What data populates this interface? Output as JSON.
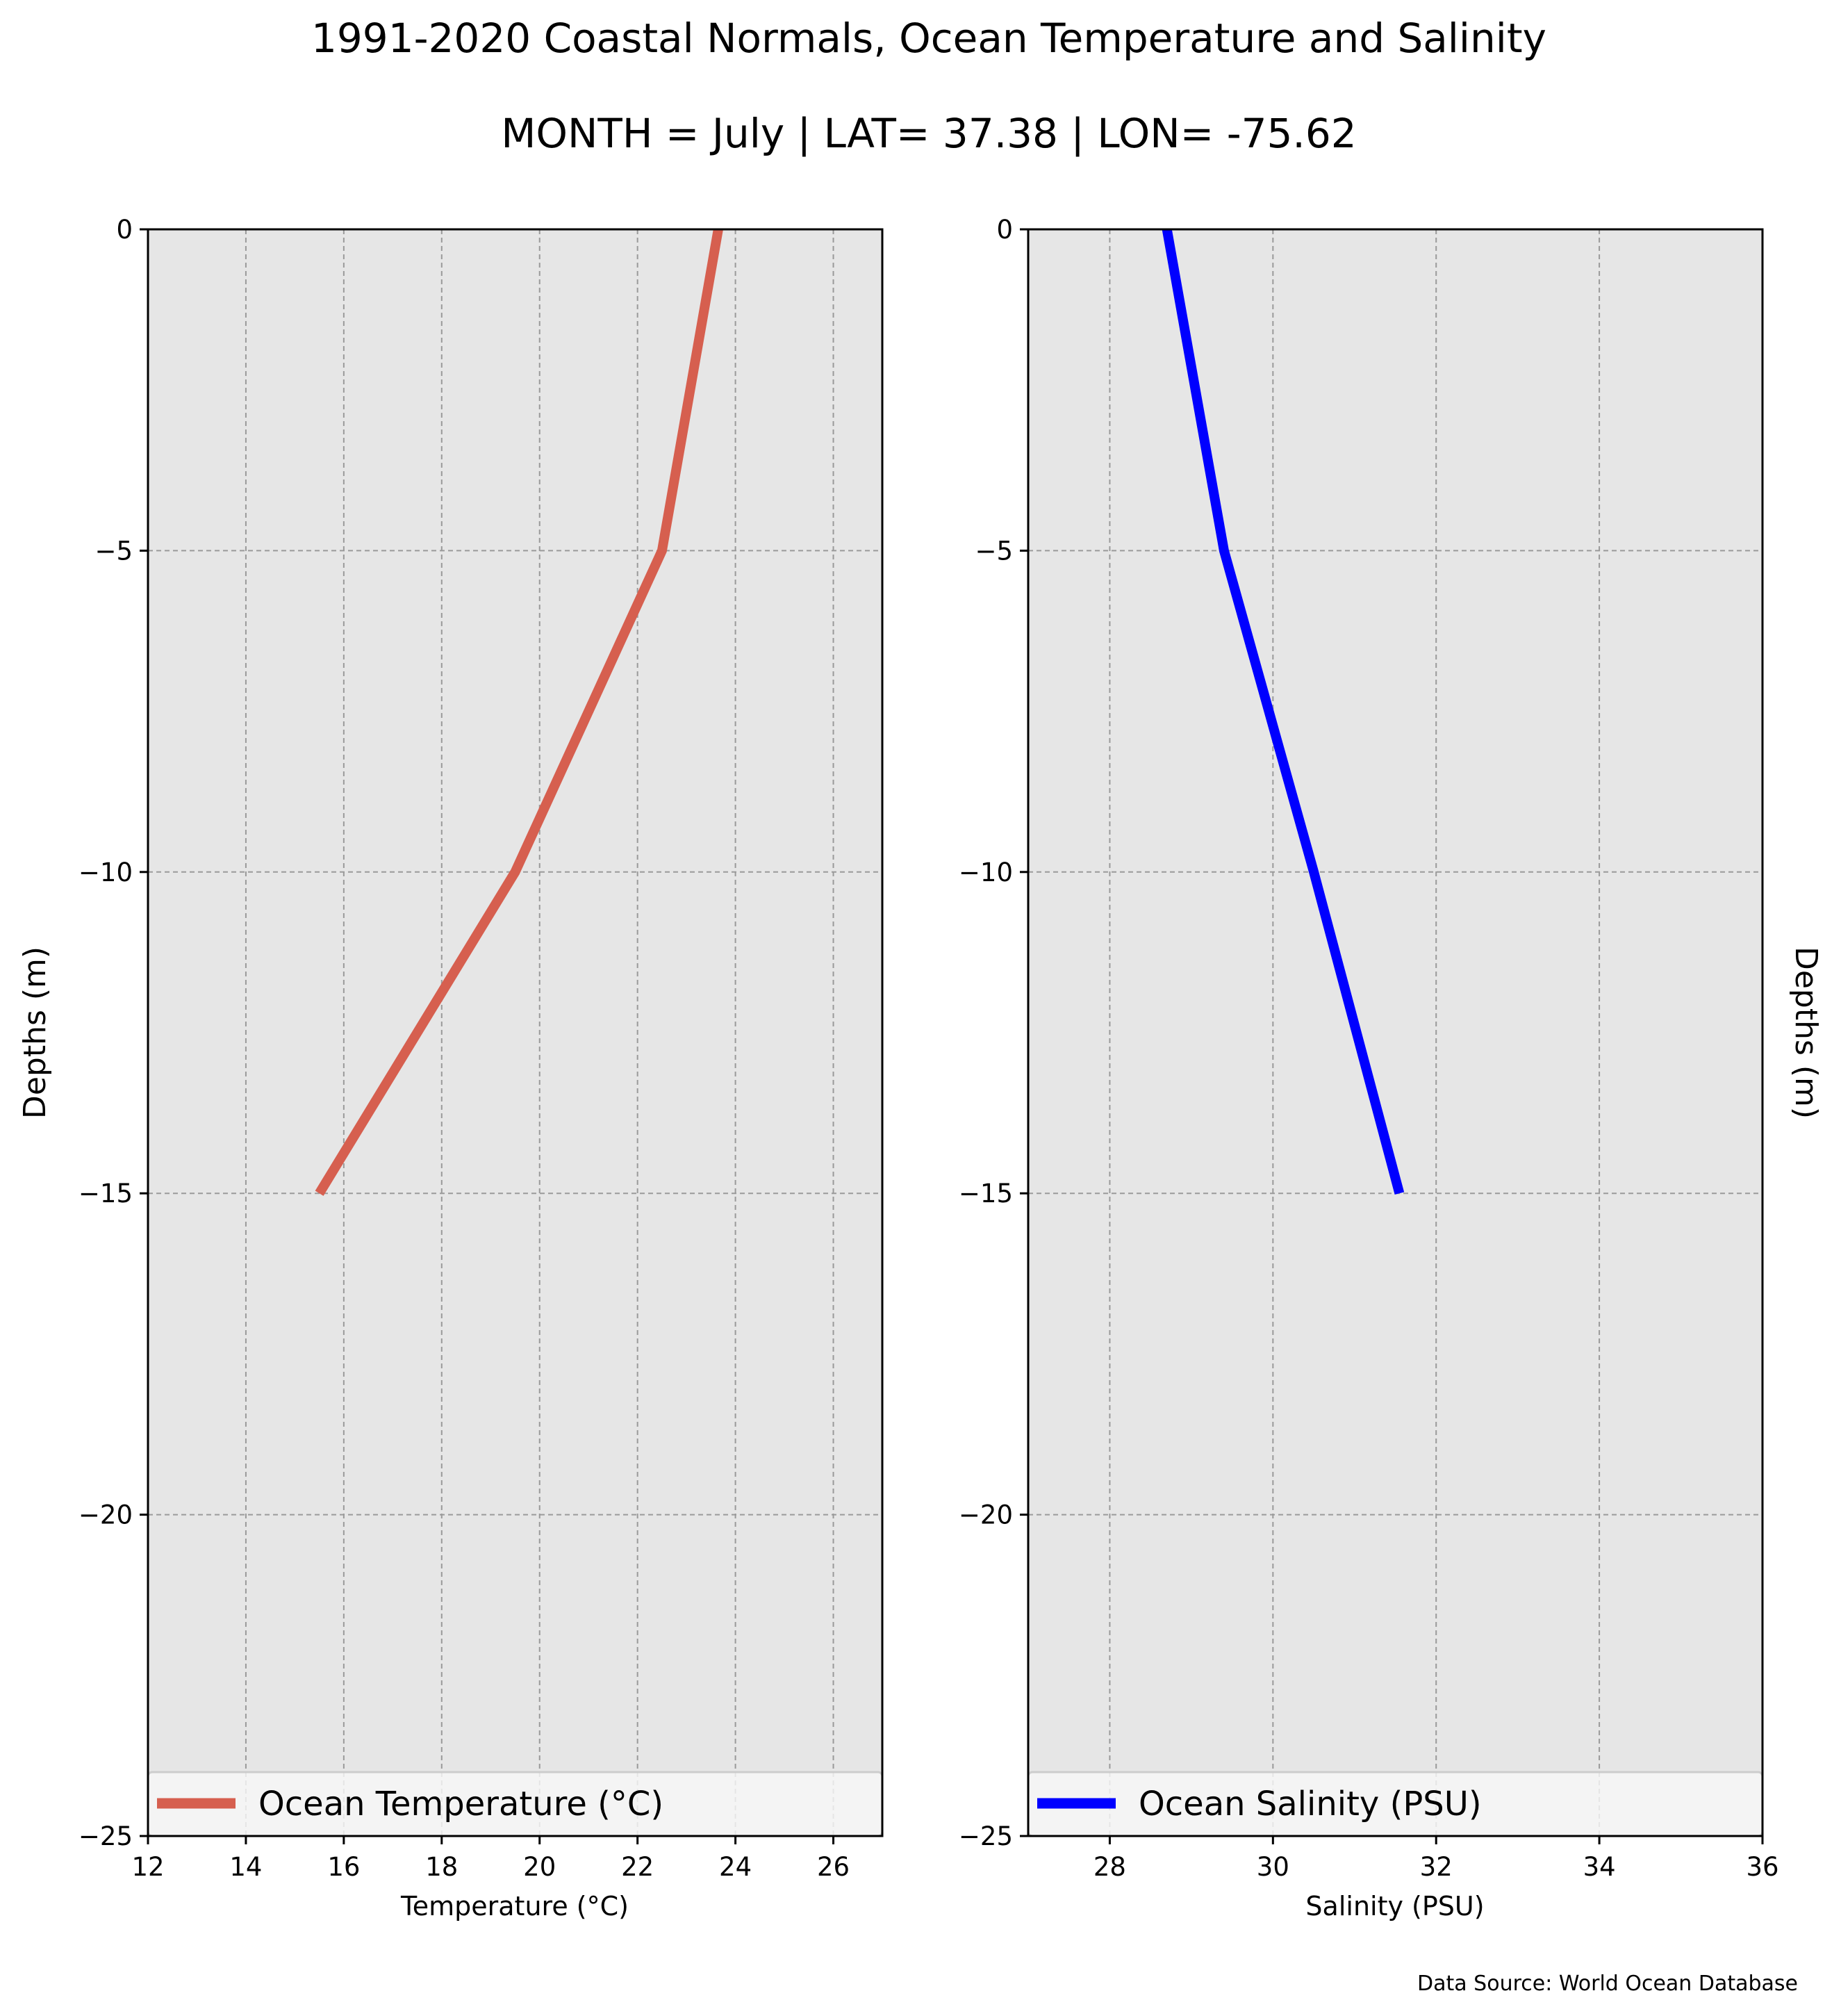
{
  "figure": {
    "title": "1991-2020 Coastal Normals, Ocean Temperature and Salinity",
    "subtitle": "MONTH = July | LAT= 37.38 | LON= -75.62",
    "source": "Data Source: World Ocean Database",
    "background_color": "#e6e6e6",
    "grid_color": "#9a9a9a"
  },
  "chart_data": [
    {
      "type": "line",
      "xlabel": "Temperature (°C)",
      "ylabel": "Depths (m)",
      "ylabel_side": "left",
      "xlim": [
        12,
        27
      ],
      "ylim": [
        -25,
        0
      ],
      "x_ticks": [
        12,
        14,
        16,
        18,
        20,
        22,
        24,
        26
      ],
      "x_tick_labels": [
        "12",
        "14",
        "16",
        "18",
        "20",
        "22",
        "24",
        "26"
      ],
      "y_ticks": [
        0,
        -5,
        -10,
        -15,
        -20,
        -25
      ],
      "y_tick_labels": [
        "0",
        "−5",
        "−10",
        "−15",
        "−20",
        "−25"
      ],
      "grid": true,
      "legend_position": "bottom",
      "series": [
        {
          "name": "Ocean Temperature (°C)",
          "color": "#d65f4f",
          "x": [
            23.65,
            22.5,
            19.5,
            15.5
          ],
          "y": [
            0,
            -5,
            -10,
            -15
          ]
        }
      ]
    },
    {
      "type": "line",
      "xlabel": "Salinity (PSU)",
      "ylabel": "Depths (m)",
      "ylabel_side": "right",
      "xlim": [
        27,
        36
      ],
      "ylim": [
        -25,
        0
      ],
      "x_ticks": [
        28,
        30,
        32,
        34,
        36
      ],
      "x_tick_labels": [
        "28",
        "30",
        "32",
        "34",
        "36"
      ],
      "y_ticks": [
        0,
        -5,
        -10,
        -15,
        -20,
        -25
      ],
      "y_tick_labels": [
        "0",
        "−5",
        "−10",
        "−15",
        "−20",
        "−25"
      ],
      "grid": true,
      "legend_position": "bottom",
      "series": [
        {
          "name": "Ocean Salinity (PSU)",
          "color": "#0000ff",
          "x": [
            28.7,
            29.4,
            30.5,
            31.55
          ],
          "y": [
            0,
            -5,
            -10,
            -15
          ]
        }
      ]
    }
  ]
}
